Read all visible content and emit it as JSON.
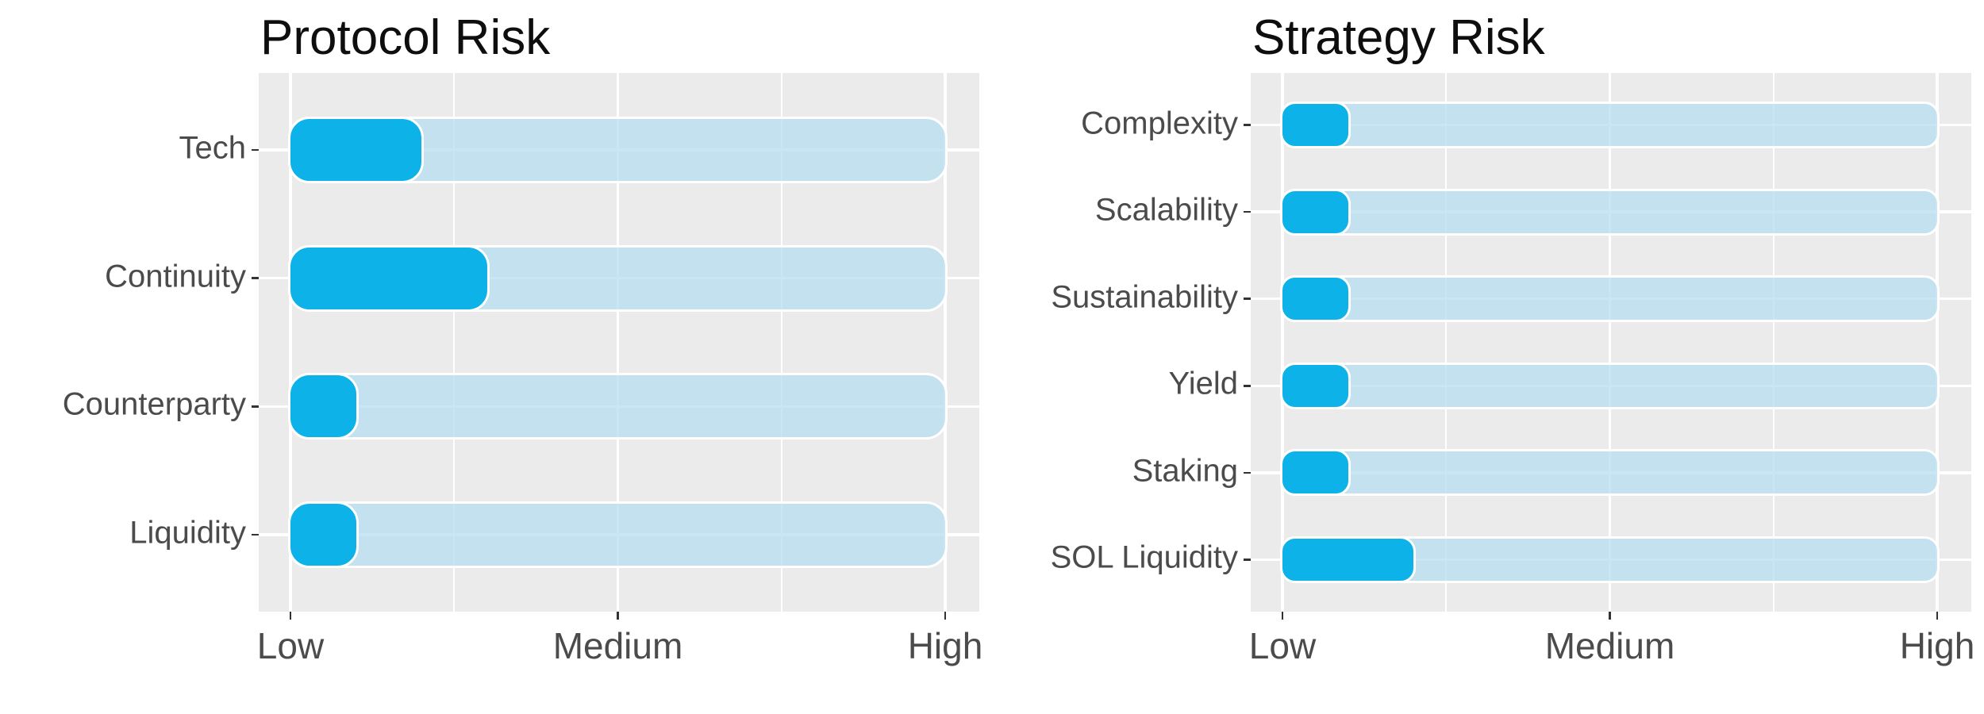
{
  "figure": {
    "background": "#ffffff",
    "panel_background": "#ebebeb",
    "gridline_color": "#ffffff",
    "bar_color": "#0cb2e8",
    "bar_stroke": "#ffffff",
    "track_color": "rgba(183,222,239,0.76)",
    "title_color": "#0e0e0e",
    "axis_text_color": "#4b4b4b",
    "tick_mark_color": "#333333"
  },
  "chart_data": [
    {
      "type": "bar",
      "orientation": "horizontal",
      "title": "Protocol Risk",
      "categories": [
        "Tech",
        "Continuity",
        "Counterparty",
        "Liquidity"
      ],
      "values": [
        2,
        3,
        1,
        1
      ],
      "track_full_value": 10,
      "xlabel": "",
      "ylabel": "",
      "value_scale": {
        "min": 0,
        "max": 10,
        "ticks": [
          {
            "value": 0,
            "label": "Low"
          },
          {
            "value": 5,
            "label": "Medium"
          },
          {
            "value": 10,
            "label": "High"
          }
        ],
        "minor_ticks": [
          2.5,
          7.5
        ]
      },
      "grid": "white major and minor on grey panel",
      "legend_position": "none"
    },
    {
      "type": "bar",
      "orientation": "horizontal",
      "title": "Strategy Risk",
      "categories": [
        "Complexity",
        "Scalability",
        "Sustainability",
        "Yield",
        "Staking",
        "SOL Liquidity"
      ],
      "values": [
        1,
        1,
        1,
        1,
        1,
        2
      ],
      "track_full_value": 10,
      "xlabel": "",
      "ylabel": "",
      "value_scale": {
        "min": 0,
        "max": 10,
        "ticks": [
          {
            "value": 0,
            "label": "Low"
          },
          {
            "value": 5,
            "label": "Medium"
          },
          {
            "value": 10,
            "label": "High"
          }
        ],
        "minor_ticks": [
          2.5,
          7.5
        ]
      },
      "grid": "white major and minor on grey panel",
      "legend_position": "none"
    }
  ]
}
